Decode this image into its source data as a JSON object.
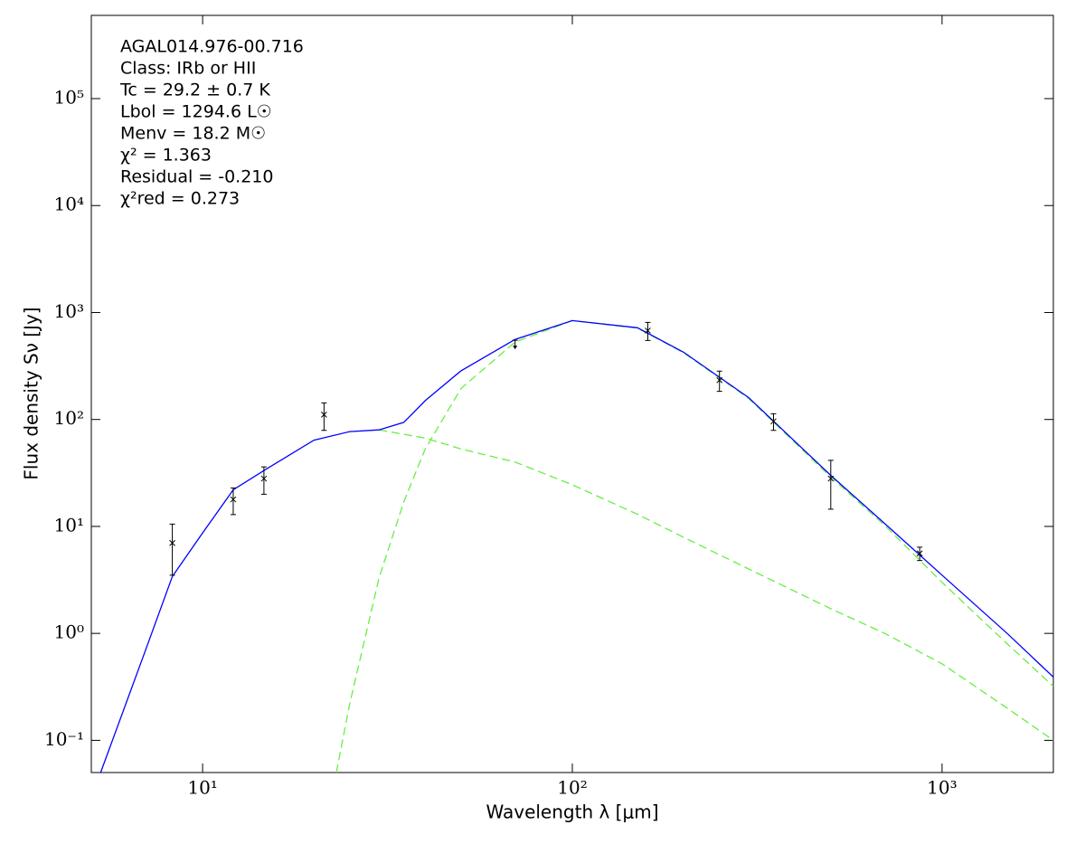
{
  "chart_data": {
    "type": "line",
    "xlabel": "Wavelength λ [μm]",
    "ylabel": "Flux density Sν [Jy]",
    "annotations": [
      "AGAL014.976-00.716",
      "Class: IRb or HII",
      "Tc = 29.2 ± 0.7 K",
      "Lbol = 1294.6 L☉",
      "Menv = 18.2 M☉",
      "χ² = 1.363",
      "Residual = -0.210",
      "χ²red = 0.273"
    ],
    "xscale": "log",
    "yscale": "log",
    "xlim": [
      5,
      2000
    ],
    "ylim": [
      0.05,
      600000
    ],
    "xticks": [
      {
        "value": 10,
        "label": "10¹"
      },
      {
        "value": 100,
        "label": "10²"
      },
      {
        "value": 1000,
        "label": "10³"
      }
    ],
    "yticks": [
      {
        "value": 0.1,
        "label": "10⁻¹"
      },
      {
        "value": 1,
        "label": "10⁰"
      },
      {
        "value": 10,
        "label": "10¹"
      },
      {
        "value": 100,
        "label": "10²"
      },
      {
        "value": 1000,
        "label": "10³"
      },
      {
        "value": 10000,
        "label": "10⁴"
      },
      {
        "value": 100000,
        "label": "10⁵"
      }
    ],
    "series": [
      {
        "style": "errorbar",
        "color": "#000000",
        "x": [
          8.28,
          12.1,
          14.65,
          21.3,
          160,
          250,
          350,
          500,
          870
        ],
        "values": [
          7.0,
          17.9,
          28,
          111,
          678,
          233,
          96,
          28,
          5.6
        ],
        "errors": [
          3.5,
          5,
          8,
          32,
          130,
          50,
          17,
          13.5,
          0.8
        ]
      },
      {
        "style": "upper-limit",
        "color": "#000000",
        "x": [
          70
        ],
        "values": [
          550
        ]
      },
      {
        "style": "solid",
        "color": "#0000ff",
        "x": [
          5.3,
          7,
          8.28,
          10,
          12.1,
          15,
          20,
          25,
          30,
          35,
          40,
          50,
          70,
          100,
          150,
          200,
          300,
          500,
          700,
          1000,
          1500,
          2000
        ],
        "values": [
          0.05,
          0.69,
          3.4,
          8.7,
          22,
          35,
          64,
          77,
          80,
          94,
          150,
          285,
          560,
          840,
          720,
          425,
          160,
          30,
          10.6,
          3.5,
          1.0,
          0.39
        ]
      },
      {
        "style": "dashed",
        "color": "#66ee44",
        "x": [
          23,
          25,
          30,
          35,
          40,
          50,
          70,
          100,
          150,
          200,
          300,
          500,
          700,
          1000,
          1500,
          2000
        ],
        "values": [
          0.05,
          0.22,
          3.3,
          17,
          53,
          195,
          530,
          840,
          715,
          420,
          157,
          29,
          10.2,
          3.0,
          0.8,
          0.32
        ]
      },
      {
        "style": "dashed",
        "color": "#66ee44",
        "x": [
          30,
          40,
          50,
          70,
          100,
          150,
          200,
          300,
          500,
          700,
          1000,
          1500,
          2000
        ],
        "values": [
          80,
          67,
          53,
          40,
          24.5,
          13,
          7.9,
          4.0,
          1.7,
          1.0,
          0.52,
          0.2,
          0.1
        ]
      }
    ]
  }
}
